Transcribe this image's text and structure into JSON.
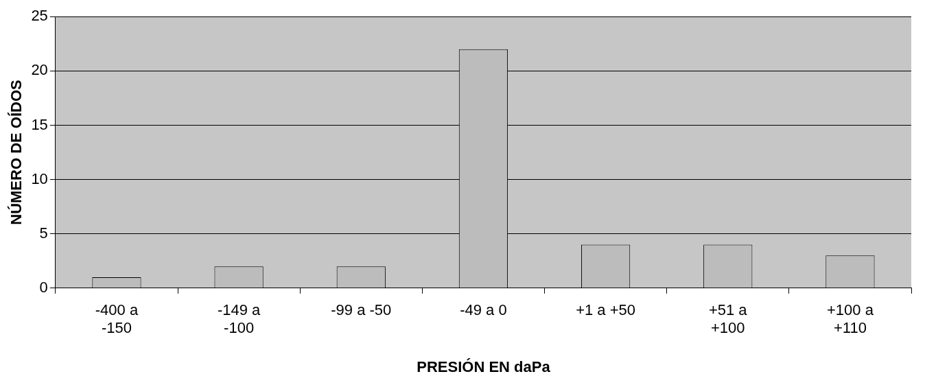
{
  "chart_data": {
    "type": "bar",
    "xlabel": "PRESIÓN EN daPa",
    "ylabel": "NÚMERO DE OÍDOS",
    "categories": [
      "-400 a -150",
      "-149 a -100",
      "-99 a -50",
      "-49 a 0",
      "+1 a +50",
      "+51 a +100",
      "+100 a +110"
    ],
    "values": [
      1,
      2,
      2,
      22,
      4,
      4,
      3
    ],
    "color": "#bcbcbc",
    "ylim": [
      0,
      25
    ],
    "yticks": [
      0,
      5,
      10,
      15,
      20,
      25
    ],
    "grid": "y"
  }
}
